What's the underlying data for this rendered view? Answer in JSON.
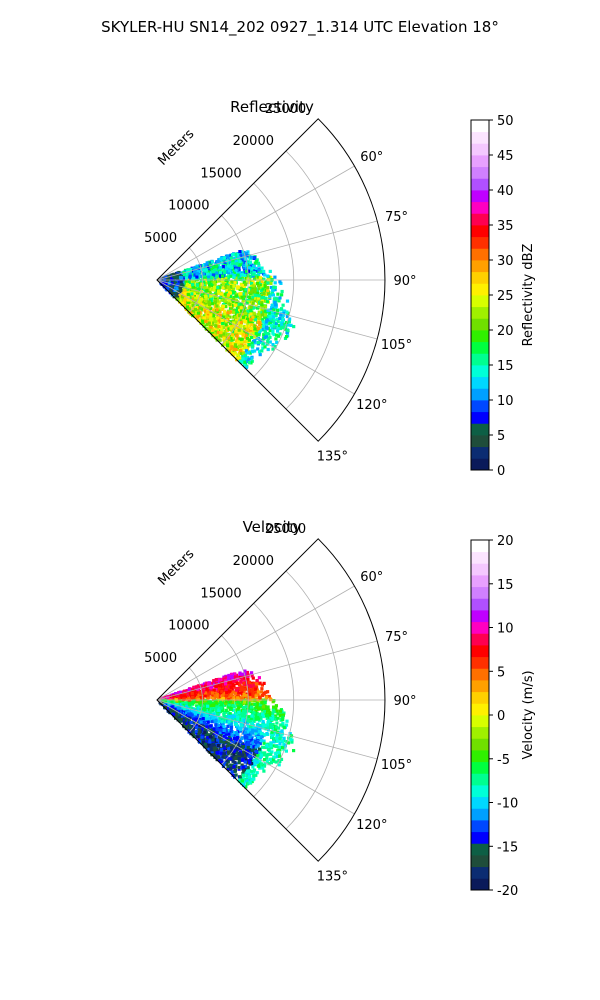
{
  "figure": {
    "suptitle": "SKYLER-HU  SN14_202  0927_1.314 UTC Elevation 18°"
  },
  "chart_data": [
    {
      "type": "heatmap",
      "projection": "polar-sector",
      "title": "Reflectivity",
      "range_label": "Meters",
      "range_max": 25000,
      "range_ticks": [
        5000,
        10000,
        15000,
        20000,
        25000
      ],
      "azimuth_range": [
        45,
        135
      ],
      "azimuth_ticks": [
        60,
        75,
        90,
        105,
        120,
        135
      ],
      "grid": true,
      "colorbar": {
        "label": "Reflectivity dBZ",
        "min": 0,
        "max": 50,
        "ticks": [
          0,
          5,
          10,
          15,
          20,
          25,
          30,
          35,
          40,
          45,
          50
        ],
        "colors": [
          "#0a1a5a",
          "#0b2c72",
          "#1f4d3a",
          "#0d5f45",
          "#0000ff",
          "#0048ff",
          "#00a0ff",
          "#00d8ff",
          "#00ffd8",
          "#00ff90",
          "#00ff40",
          "#30f000",
          "#70e000",
          "#a0f000",
          "#d8ff00",
          "#fff000",
          "#ffd000",
          "#ffa000",
          "#ff7000",
          "#ff3000",
          "#ff0000",
          "#ff0050",
          "#ff00c0",
          "#c000ff",
          "#b050ff",
          "#d080ff",
          "#e8a0ff",
          "#f4c8ff",
          "#fbe4ff",
          "#ffffff"
        ]
      },
      "echo_summary": {
        "near_field_dBZ": [
          3,
          10
        ],
        "main_band_dBZ": [
          15,
          28
        ],
        "edge_dBZ": [
          8,
          14
        ]
      }
    },
    {
      "type": "heatmap",
      "projection": "polar-sector",
      "title": "Velocity",
      "range_label": "Meters",
      "range_max": 25000,
      "range_ticks": [
        5000,
        10000,
        15000,
        20000,
        25000
      ],
      "azimuth_range": [
        45,
        135
      ],
      "azimuth_ticks": [
        60,
        75,
        90,
        105,
        120,
        135
      ],
      "grid": true,
      "colorbar": {
        "label": "Velocity (m/s)",
        "min": -20,
        "max": 20,
        "ticks": [
          -20,
          -15,
          -10,
          -5,
          0,
          5,
          10,
          15,
          20
        ],
        "colors": [
          "#0a1a5a",
          "#0b2c72",
          "#1f4d3a",
          "#0d5f45",
          "#0000ff",
          "#0048ff",
          "#00a0ff",
          "#00d8ff",
          "#00ffd8",
          "#00ff90",
          "#00ff40",
          "#30f000",
          "#70e000",
          "#a0f000",
          "#d8ff00",
          "#fff000",
          "#ffd000",
          "#ffa000",
          "#ff7000",
          "#ff3000",
          "#ff0000",
          "#ff0050",
          "#ff00c0",
          "#c000ff",
          "#b050ff",
          "#d080ff",
          "#e8a0ff",
          "#f4c8ff",
          "#fbe4ff",
          "#ffffff"
        ]
      },
      "echo_summary": {
        "north_part_ms": [
          0,
          12
        ],
        "center_ms": [
          -10,
          -3
        ],
        "south_edge_ms": [
          -18,
          -10
        ]
      }
    }
  ]
}
